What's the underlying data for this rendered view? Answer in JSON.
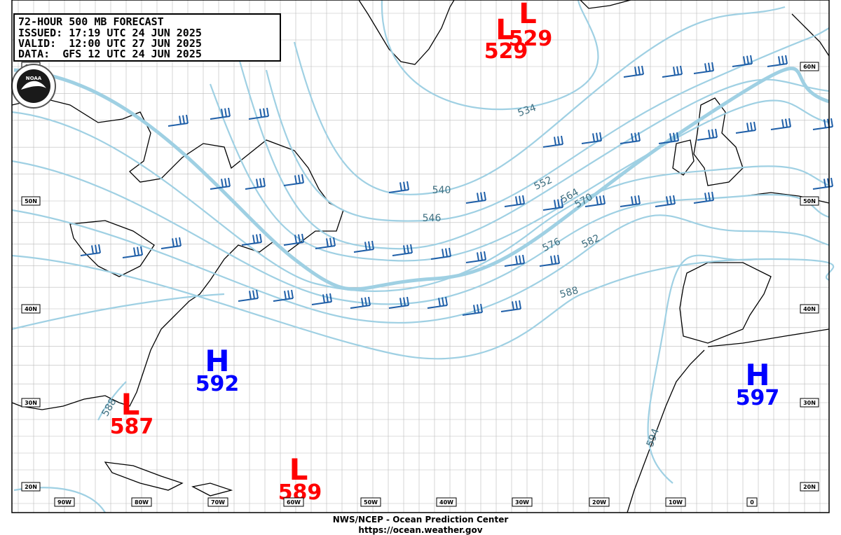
{
  "header": {
    "lines": [
      "72-HOUR 500 MB FORECAST",
      "ISSUED: 17:19 UTC 24 JUN 2025",
      "VALID:  12:00 UTC 27 JUN 2025",
      "DATA:  GFS 12 UTC 24 JUN 2025"
    ]
  },
  "logo": "NOAA",
  "systems": [
    {
      "letter": "L",
      "value": "529"
    },
    {
      "letter": "L",
      "value": "529"
    },
    {
      "letter": "H",
      "value": "592"
    },
    {
      "letter": "L",
      "value": "587"
    },
    {
      "letter": "L",
      "value": "589"
    },
    {
      "letter": "H",
      "value": "597"
    }
  ],
  "contour_labels": [
    "534",
    "540",
    "546",
    "552",
    "564",
    "570",
    "576",
    "582",
    "588",
    "588",
    "594"
  ],
  "lat_labels": [
    "60N",
    "50N",
    "40N",
    "30N",
    "20N"
  ],
  "lon_labels": [
    "90W",
    "80W",
    "70W",
    "60W",
    "50W",
    "40W",
    "30W",
    "20W",
    "10W",
    "0"
  ],
  "footer": {
    "line1": "NWS/NCEP - Ocean Prediction Center",
    "line2": "https://ocean.weather.gov"
  }
}
